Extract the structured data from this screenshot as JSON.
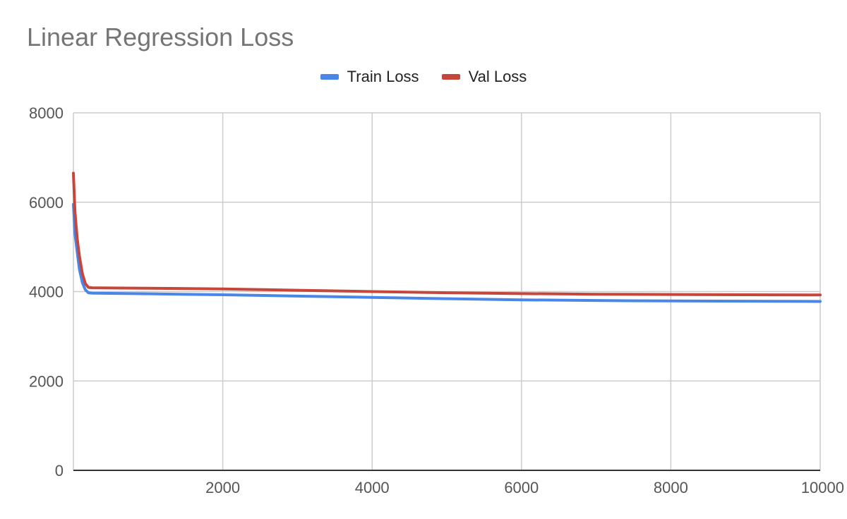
{
  "chart_data": {
    "type": "line",
    "title": "Linear Regression Loss",
    "xlabel": "",
    "ylabel": "",
    "xlim": [
      0,
      10000
    ],
    "ylim": [
      0,
      8000
    ],
    "x_ticks": [
      2000,
      4000,
      6000,
      8000,
      10000
    ],
    "y_ticks": [
      0,
      2000,
      4000,
      6000,
      8000
    ],
    "grid": true,
    "legend_position": "top-center",
    "series": [
      {
        "name": "Train Loss",
        "color": "#4a86e8",
        "x": [
          0,
          20,
          50,
          80,
          120,
          160,
          200,
          250,
          500,
          1000,
          2000,
          3000,
          4000,
          5000,
          6000,
          7000,
          8000,
          9000,
          10000
        ],
        "y": [
          5950,
          5300,
          4900,
          4500,
          4200,
          4040,
          3975,
          3965,
          3960,
          3950,
          3930,
          3900,
          3870,
          3840,
          3815,
          3800,
          3790,
          3785,
          3780
        ]
      },
      {
        "name": "Val Loss",
        "color": "#c5473b",
        "x": [
          0,
          20,
          50,
          80,
          120,
          160,
          200,
          250,
          500,
          1000,
          2000,
          3000,
          4000,
          5000,
          6000,
          7000,
          8000,
          9000,
          10000
        ],
        "y": [
          6650,
          5800,
          5200,
          4800,
          4400,
          4180,
          4095,
          4085,
          4080,
          4075,
          4060,
          4030,
          4000,
          3975,
          3955,
          3940,
          3935,
          3930,
          3925
        ]
      }
    ]
  }
}
